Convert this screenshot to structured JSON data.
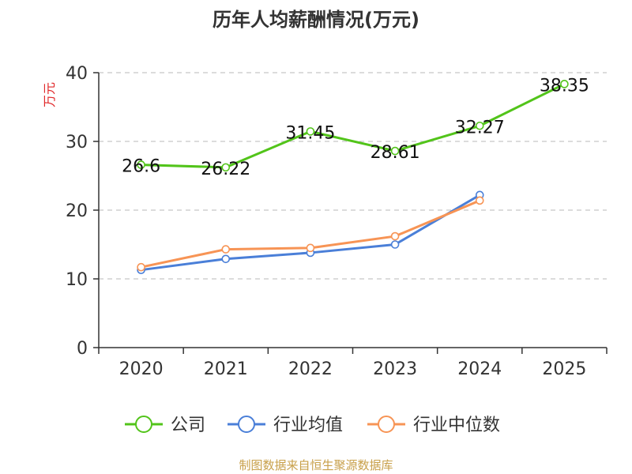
{
  "chart_data": {
    "type": "line",
    "title": "历年人均薪酬情况(万元)",
    "ylabel": "万元",
    "xlabel": "",
    "categories": [
      "2020",
      "2021",
      "2022",
      "2023",
      "2024",
      "2025"
    ],
    "ylim": [
      0,
      40
    ],
    "yticks": [
      "0",
      "10",
      "20",
      "30",
      "40"
    ],
    "grid": true,
    "legend": "bottom",
    "series": [
      {
        "name": "公司",
        "color": "#52c41a",
        "values": [
          26.6,
          26.22,
          31.45,
          28.61,
          32.27,
          38.35
        ],
        "labels": [
          "26.6",
          "26.22",
          "31.45",
          "28.61",
          "32.27",
          "38.35"
        ]
      },
      {
        "name": "行业均值",
        "color": "#4a7fd8",
        "values": [
          11.3,
          12.9,
          13.8,
          15.0,
          22.2,
          null
        ],
        "labels": []
      },
      {
        "name": "行业中位数",
        "color": "#f79455",
        "values": [
          11.7,
          14.3,
          14.5,
          16.2,
          21.4,
          null
        ],
        "labels": []
      }
    ]
  },
  "footer": {
    "source": "制图数据来自恒生聚源数据库",
    "source_color": "#c8a04a",
    "ylabel_color": "#e0282a"
  }
}
